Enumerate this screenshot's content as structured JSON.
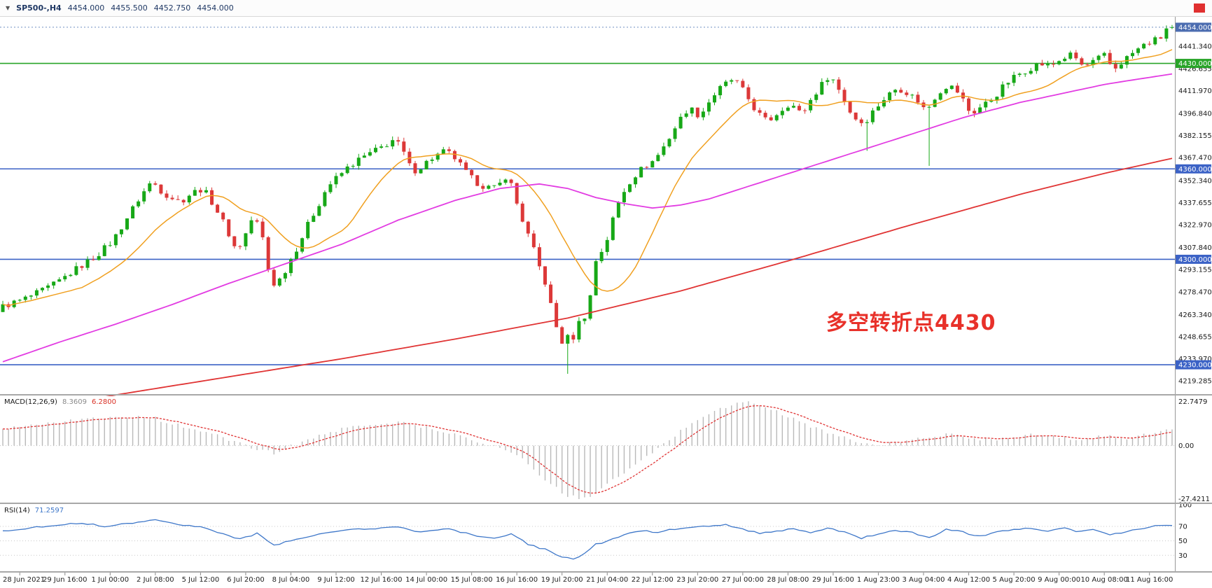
{
  "header": {
    "menu_icon": "▼",
    "symbol_period": "SP500-,H4",
    "open": "4454.000",
    "high": "4455.500",
    "low": "4452.750",
    "close": "4454.000"
  },
  "annotation": {
    "text": "多空转折点4430",
    "color": "#e8312a"
  },
  "indicators": {
    "macd": {
      "label": "MACD(12,26,9)",
      "main_value": "8.3609",
      "signal_value": "6.2800"
    },
    "rsi": {
      "label": "RSI(14)",
      "value": "71.2597"
    }
  },
  "colors": {
    "background": "#ffffff",
    "candle_up": "#17a817",
    "candle_down": "#dc3838",
    "ma_fast": "#f0a020",
    "ma_mid": "#e23ce2",
    "ma_slow": "#e03434",
    "hline_blue": "#3b62c6",
    "hline_green": "#28a428",
    "price_line": "#6f8fc0",
    "price_box": "#4b6cb0",
    "macd_hist": "#b9b9b9",
    "macd_signal": "#e03434",
    "rsi_line": "#3e77c9",
    "axis_text": "#1a1a1a"
  },
  "chart_data": {
    "type": "candlestick",
    "symbol": "SP500-",
    "timeframe": "H4",
    "bars": 208,
    "current_bar": {
      "open": 4454.0,
      "high": 4455.5,
      "low": 4452.75,
      "close": 4454.0
    },
    "price_axis": {
      "visible_range": [
        4211,
        4460
      ],
      "labels": [
        {
          "value": 4441.34,
          "label": "4441.340"
        },
        {
          "value": 4426.655,
          "label": "4426.655"
        },
        {
          "value": 4411.97,
          "label": "4411.970"
        },
        {
          "value": 4396.84,
          "label": "4396.840"
        },
        {
          "value": 4382.155,
          "label": "4382.155"
        },
        {
          "value": 4367.47,
          "label": "4367.470"
        },
        {
          "value": 4352.34,
          "label": "4352.340"
        },
        {
          "value": 4337.655,
          "label": "4337.655"
        },
        {
          "value": 4322.97,
          "label": "4322.970"
        },
        {
          "value": 4307.84,
          "label": "4307.840"
        },
        {
          "value": 4293.155,
          "label": "4293.155"
        },
        {
          "value": 4278.47,
          "label": "4278.470"
        },
        {
          "value": 4263.34,
          "label": "4263.340"
        },
        {
          "value": 4248.655,
          "label": "4248.655"
        },
        {
          "value": 4233.97,
          "label": "4233.970"
        },
        {
          "value": 4219.285,
          "label": "4219.285"
        }
      ]
    },
    "price_line": {
      "value": 4454.0,
      "label": "4454.000"
    },
    "hlines": [
      {
        "value": 4430,
        "label": "4430.000",
        "color": "#28a428"
      },
      {
        "value": 4360,
        "label": "4360.000",
        "color": "#3b62c6"
      },
      {
        "value": 4300,
        "label": "4300.000",
        "color": "#3b62c6"
      },
      {
        "value": 4230,
        "label": "4230.000",
        "color": "#3b62c6"
      }
    ],
    "time_axis": {
      "first_bar_index": 3,
      "step": 8,
      "labels": [
        "28 Jun 2021",
        "29 Jun 16:00",
        "1 Jul 00:00",
        "2 Jul 08:00",
        "5 Jul 12:00",
        "6 Jul 20:00",
        "8 Jul 04:00",
        "9 Jul 12:00",
        "12 Jul 16:00",
        "14 Jul 00:00",
        "15 Jul 08:00",
        "16 Jul 16:00",
        "19 Jul 20:00",
        "21 Jul 04:00",
        "22 Jul 12:00",
        "23 Jul 20:00",
        "27 Jul 00:00",
        "28 Jul 08:00",
        "29 Jul 16:00",
        "1 Aug 23:00",
        "3 Aug 04:00",
        "4 Aug 12:00",
        "5 Aug 20:00",
        "9 Aug 00:00",
        "10 Aug 08:00",
        "11 Aug 16:00"
      ]
    },
    "price_anchors": [
      [
        0,
        4268
      ],
      [
        4,
        4273
      ],
      [
        7,
        4278
      ],
      [
        10,
        4284
      ],
      [
        13,
        4292
      ],
      [
        17,
        4302
      ],
      [
        20,
        4312
      ],
      [
        23,
        4330
      ],
      [
        25,
        4342
      ],
      [
        27,
        4352
      ],
      [
        29,
        4344
      ],
      [
        32,
        4338
      ],
      [
        34,
        4344
      ],
      [
        36,
        4347
      ],
      [
        38,
        4336
      ],
      [
        40,
        4322
      ],
      [
        42,
        4305
      ],
      [
        44,
        4320
      ],
      [
        45,
        4330
      ],
      [
        47,
        4310
      ],
      [
        48,
        4282
      ],
      [
        50,
        4288
      ],
      [
        51,
        4296
      ],
      [
        53,
        4310
      ],
      [
        55,
        4326
      ],
      [
        57,
        4340
      ],
      [
        58,
        4348
      ],
      [
        60,
        4355
      ],
      [
        62,
        4362
      ],
      [
        64,
        4367
      ],
      [
        66,
        4371
      ],
      [
        68,
        4375
      ],
      [
        70,
        4380
      ],
      [
        72,
        4368
      ],
      [
        73,
        4358
      ],
      [
        75,
        4362
      ],
      [
        76,
        4366
      ],
      [
        78,
        4370
      ],
      [
        79,
        4372
      ],
      [
        81,
        4366
      ],
      [
        82,
        4360
      ],
      [
        84,
        4352
      ],
      [
        86,
        4348
      ],
      [
        88,
        4347
      ],
      [
        90,
        4357
      ],
      [
        92,
        4332
      ],
      [
        94,
        4312
      ],
      [
        95,
        4302
      ],
      [
        96,
        4290
      ],
      [
        97,
        4281
      ],
      [
        98,
        4262
      ],
      [
        99,
        4250
      ],
      [
        100,
        4242
      ],
      [
        101,
        4252
      ],
      [
        102,
        4246
      ],
      [
        103,
        4266
      ],
      [
        104,
        4260
      ],
      [
        105,
        4286
      ],
      [
        106,
        4308
      ],
      [
        107,
        4304
      ],
      [
        108,
        4320
      ],
      [
        110,
        4342
      ],
      [
        112,
        4354
      ],
      [
        114,
        4361
      ],
      [
        116,
        4366
      ],
      [
        118,
        4377
      ],
      [
        120,
        4390
      ],
      [
        122,
        4401
      ],
      [
        124,
        4395
      ],
      [
        126,
        4407
      ],
      [
        128,
        4415
      ],
      [
        130,
        4420
      ],
      [
        132,
        4410
      ],
      [
        134,
        4398
      ],
      [
        136,
        4391
      ],
      [
        138,
        4398
      ],
      [
        140,
        4404
      ],
      [
        142,
        4396
      ],
      [
        144,
        4408
      ],
      [
        146,
        4418
      ],
      [
        147,
        4423
      ],
      [
        149,
        4410
      ],
      [
        151,
        4395
      ],
      [
        153,
        4390
      ],
      [
        155,
        4400
      ],
      [
        157,
        4408
      ],
      [
        159,
        4414
      ],
      [
        161,
        4410
      ],
      [
        163,
        4404
      ],
      [
        164,
        4398
      ],
      [
        166,
        4410
      ],
      [
        168,
        4416
      ],
      [
        170,
        4410
      ],
      [
        172,
        4396
      ],
      [
        174,
        4402
      ],
      [
        176,
        4407
      ],
      [
        178,
        4416
      ],
      [
        180,
        4422
      ],
      [
        182,
        4426
      ],
      [
        184,
        4430
      ],
      [
        186,
        4428
      ],
      [
        188,
        4433
      ],
      [
        190,
        4436
      ],
      [
        192,
        4427
      ],
      [
        194,
        4432
      ],
      [
        196,
        4436
      ],
      [
        197,
        4425
      ],
      [
        199,
        4432
      ],
      [
        201,
        4438
      ],
      [
        203,
        4443
      ],
      [
        205,
        4446
      ],
      [
        206,
        4448
      ],
      [
        207,
        4454
      ]
    ],
    "wick_overrides": {
      "100": 4224,
      "153": 4372,
      "164": 4362
    },
    "ma_fast": {
      "color": "#f0a020",
      "period": 15
    },
    "ma_mid": {
      "color": "#e23ce2",
      "anchors": [
        [
          0,
          4232
        ],
        [
          10,
          4245
        ],
        [
          20,
          4257
        ],
        [
          30,
          4270
        ],
        [
          40,
          4284
        ],
        [
          50,
          4297
        ],
        [
          60,
          4310
        ],
        [
          70,
          4326
        ],
        [
          80,
          4339
        ],
        [
          88,
          4347
        ],
        [
          95,
          4350
        ],
        [
          100,
          4347
        ],
        [
          105,
          4341
        ],
        [
          110,
          4337
        ],
        [
          115,
          4334
        ],
        [
          120,
          4336
        ],
        [
          125,
          4340
        ],
        [
          130,
          4346
        ],
        [
          135,
          4352
        ],
        [
          140,
          4358
        ],
        [
          145,
          4364
        ],
        [
          150,
          4370
        ],
        [
          155,
          4376
        ],
        [
          160,
          4382
        ],
        [
          165,
          4388
        ],
        [
          170,
          4394
        ],
        [
          175,
          4399
        ],
        [
          180,
          4404
        ],
        [
          185,
          4408
        ],
        [
          190,
          4412
        ],
        [
          195,
          4416
        ],
        [
          200,
          4419
        ],
        [
          207,
          4423
        ]
      ]
    },
    "ma_slow": {
      "color": "#e03434",
      "anchors": [
        [
          0,
          4196
        ],
        [
          20,
          4210
        ],
        [
          40,
          4222
        ],
        [
          60,
          4234
        ],
        [
          80,
          4247
        ],
        [
          100,
          4261
        ],
        [
          120,
          4279
        ],
        [
          140,
          4300
        ],
        [
          160,
          4322
        ],
        [
          180,
          4343
        ],
        [
          195,
          4357
        ],
        [
          207,
          4367
        ]
      ]
    },
    "macd": {
      "range": [
        -29,
        25.5
      ],
      "axis_labels": [
        {
          "value": 22.7479,
          "label": "22.7479"
        },
        {
          "value": 0,
          "label": "0.00"
        },
        {
          "value": -27.4211,
          "label": "-27.4211"
        }
      ],
      "anchors": [
        [
          0,
          9
        ],
        [
          8,
          12
        ],
        [
          16,
          14
        ],
        [
          22,
          15
        ],
        [
          27,
          14
        ],
        [
          33,
          9
        ],
        [
          38,
          5
        ],
        [
          43,
          0
        ],
        [
          48,
          -4
        ],
        [
          52,
          1
        ],
        [
          58,
          7
        ],
        [
          64,
          11
        ],
        [
          70,
          12
        ],
        [
          76,
          9
        ],
        [
          82,
          4
        ],
        [
          87,
          0
        ],
        [
          91,
          -5
        ],
        [
          94,
          -12
        ],
        [
          97,
          -20
        ],
        [
          100,
          -26
        ],
        [
          103,
          -27.4
        ],
        [
          106,
          -22
        ],
        [
          110,
          -14
        ],
        [
          114,
          -6
        ],
        [
          118,
          3
        ],
        [
          122,
          12
        ],
        [
          126,
          18
        ],
        [
          129,
          21
        ],
        [
          132,
          22.7
        ],
        [
          135,
          20
        ],
        [
          139,
          15
        ],
        [
          143,
          10
        ],
        [
          147,
          6
        ],
        [
          151,
          2
        ],
        [
          155,
          0
        ],
        [
          159,
          2
        ],
        [
          163,
          4
        ],
        [
          167,
          6
        ],
        [
          171,
          4
        ],
        [
          175,
          3
        ],
        [
          179,
          5
        ],
        [
          183,
          6
        ],
        [
          187,
          4
        ],
        [
          191,
          3
        ],
        [
          195,
          5
        ],
        [
          199,
          4
        ],
        [
          203,
          6
        ],
        [
          207,
          8.36
        ]
      ]
    },
    "rsi": {
      "range": [
        8,
        100
      ],
      "levels": [
        70,
        50,
        30
      ],
      "axis_labels": [
        {
          "value": 100,
          "label": "100"
        },
        {
          "value": 70,
          "label": "70"
        },
        {
          "value": 50,
          "label": "50"
        },
        {
          "value": 30,
          "label": "30"
        }
      ],
      "anchors": [
        [
          0,
          64
        ],
        [
          5,
          68
        ],
        [
          10,
          72
        ],
        [
          14,
          75
        ],
        [
          18,
          70
        ],
        [
          22,
          74
        ],
        [
          27,
          80
        ],
        [
          31,
          72
        ],
        [
          35,
          70
        ],
        [
          39,
          60
        ],
        [
          42,
          52
        ],
        [
          45,
          60
        ],
        [
          48,
          44
        ],
        [
          51,
          50
        ],
        [
          55,
          58
        ],
        [
          60,
          64
        ],
        [
          65,
          67
        ],
        [
          70,
          70
        ],
        [
          73,
          62
        ],
        [
          76,
          65
        ],
        [
          79,
          67
        ],
        [
          83,
          58
        ],
        [
          87,
          54
        ],
        [
          90,
          60
        ],
        [
          93,
          45
        ],
        [
          96,
          38
        ],
        [
          99,
          28
        ],
        [
          101,
          24
        ],
        [
          103,
          32
        ],
        [
          105,
          45
        ],
        [
          108,
          52
        ],
        [
          110,
          58
        ],
        [
          113,
          64
        ],
        [
          116,
          62
        ],
        [
          120,
          68
        ],
        [
          124,
          70
        ],
        [
          128,
          72
        ],
        [
          131,
          66
        ],
        [
          134,
          60
        ],
        [
          137,
          64
        ],
        [
          140,
          66
        ],
        [
          143,
          62
        ],
        [
          146,
          68
        ],
        [
          149,
          62
        ],
        [
          152,
          54
        ],
        [
          155,
          60
        ],
        [
          158,
          64
        ],
        [
          161,
          62
        ],
        [
          164,
          54
        ],
        [
          167,
          66
        ],
        [
          170,
          62
        ],
        [
          173,
          56
        ],
        [
          176,
          62
        ],
        [
          179,
          66
        ],
        [
          182,
          68
        ],
        [
          185,
          64
        ],
        [
          188,
          68
        ],
        [
          190,
          62
        ],
        [
          193,
          66
        ],
        [
          196,
          58
        ],
        [
          199,
          63
        ],
        [
          202,
          68
        ],
        [
          205,
          72
        ],
        [
          207,
          71.26
        ]
      ]
    }
  }
}
